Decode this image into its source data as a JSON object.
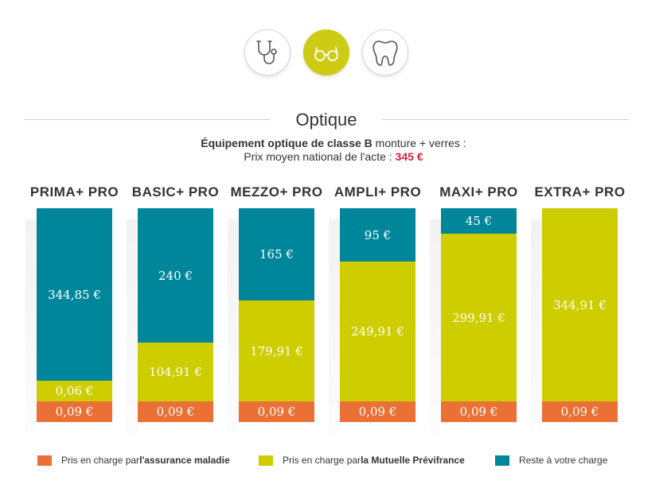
{
  "tabs": [
    {
      "name": "stethoscope-icon",
      "label": "Médecine",
      "active": false
    },
    {
      "name": "glasses-icon",
      "label": "Optique",
      "active": true
    },
    {
      "name": "tooth-icon",
      "label": "Dentaire",
      "active": false
    }
  ],
  "section": {
    "title": "Optique",
    "subtitle_bold": "Équipement optique de classe B",
    "subtitle_rest": " monture + verres :",
    "price_label": "Prix moyen national de l'acte : ",
    "price_value": "345 €"
  },
  "colors": {
    "teal": "#00869a",
    "lime": "#cdcd00",
    "orange": "#ea7035",
    "price": "#d6203a",
    "tab_active": "#cdcb14"
  },
  "chart_data": {
    "type": "bar",
    "stacked": true,
    "title": "Optique",
    "unit": "€",
    "total": 345,
    "categories": [
      "PRIMA+ PRO",
      "BASIC+ PRO",
      "MEZZO+ PRO",
      "AMPLI+ PRO",
      "MAXI+ PRO",
      "EXTRA+ PRO"
    ],
    "series": [
      {
        "name": "Pris en charge par l'assurance maladie",
        "color": "orange",
        "values": [
          0.09,
          0.09,
          0.09,
          0.09,
          0.09,
          0.09
        ],
        "labels": [
          "0,09 €",
          "0,09 €",
          "0,09 €",
          "0,09 €",
          "0,09 €",
          "0,09 €"
        ]
      },
      {
        "name": "Pris en charge par la Mutuelle Prévifrance",
        "color": "lime",
        "values": [
          0.06,
          104.91,
          179.91,
          249.91,
          299.91,
          344.91
        ],
        "labels": [
          "0,06 €",
          "104,91 €",
          "179,91 €",
          "249,91 €",
          "299,91 €",
          "344,91 €"
        ]
      },
      {
        "name": "Reste à votre charge",
        "color": "teal",
        "values": [
          344.85,
          240,
          165,
          95,
          45,
          0
        ],
        "labels": [
          "344,85 €",
          "240 €",
          "165 €",
          "95 €",
          "45 €",
          ""
        ]
      }
    ]
  },
  "legend": {
    "items": [
      {
        "prefix": "Pris en charge par ",
        "bold": "l'assurance maladie",
        "color": "orange"
      },
      {
        "prefix": "Pris en charge par ",
        "bold": "la Mutuelle Prévifrance",
        "color": "lime"
      },
      {
        "prefix": "Reste à votre charge",
        "bold": "",
        "color": "teal"
      }
    ]
  }
}
